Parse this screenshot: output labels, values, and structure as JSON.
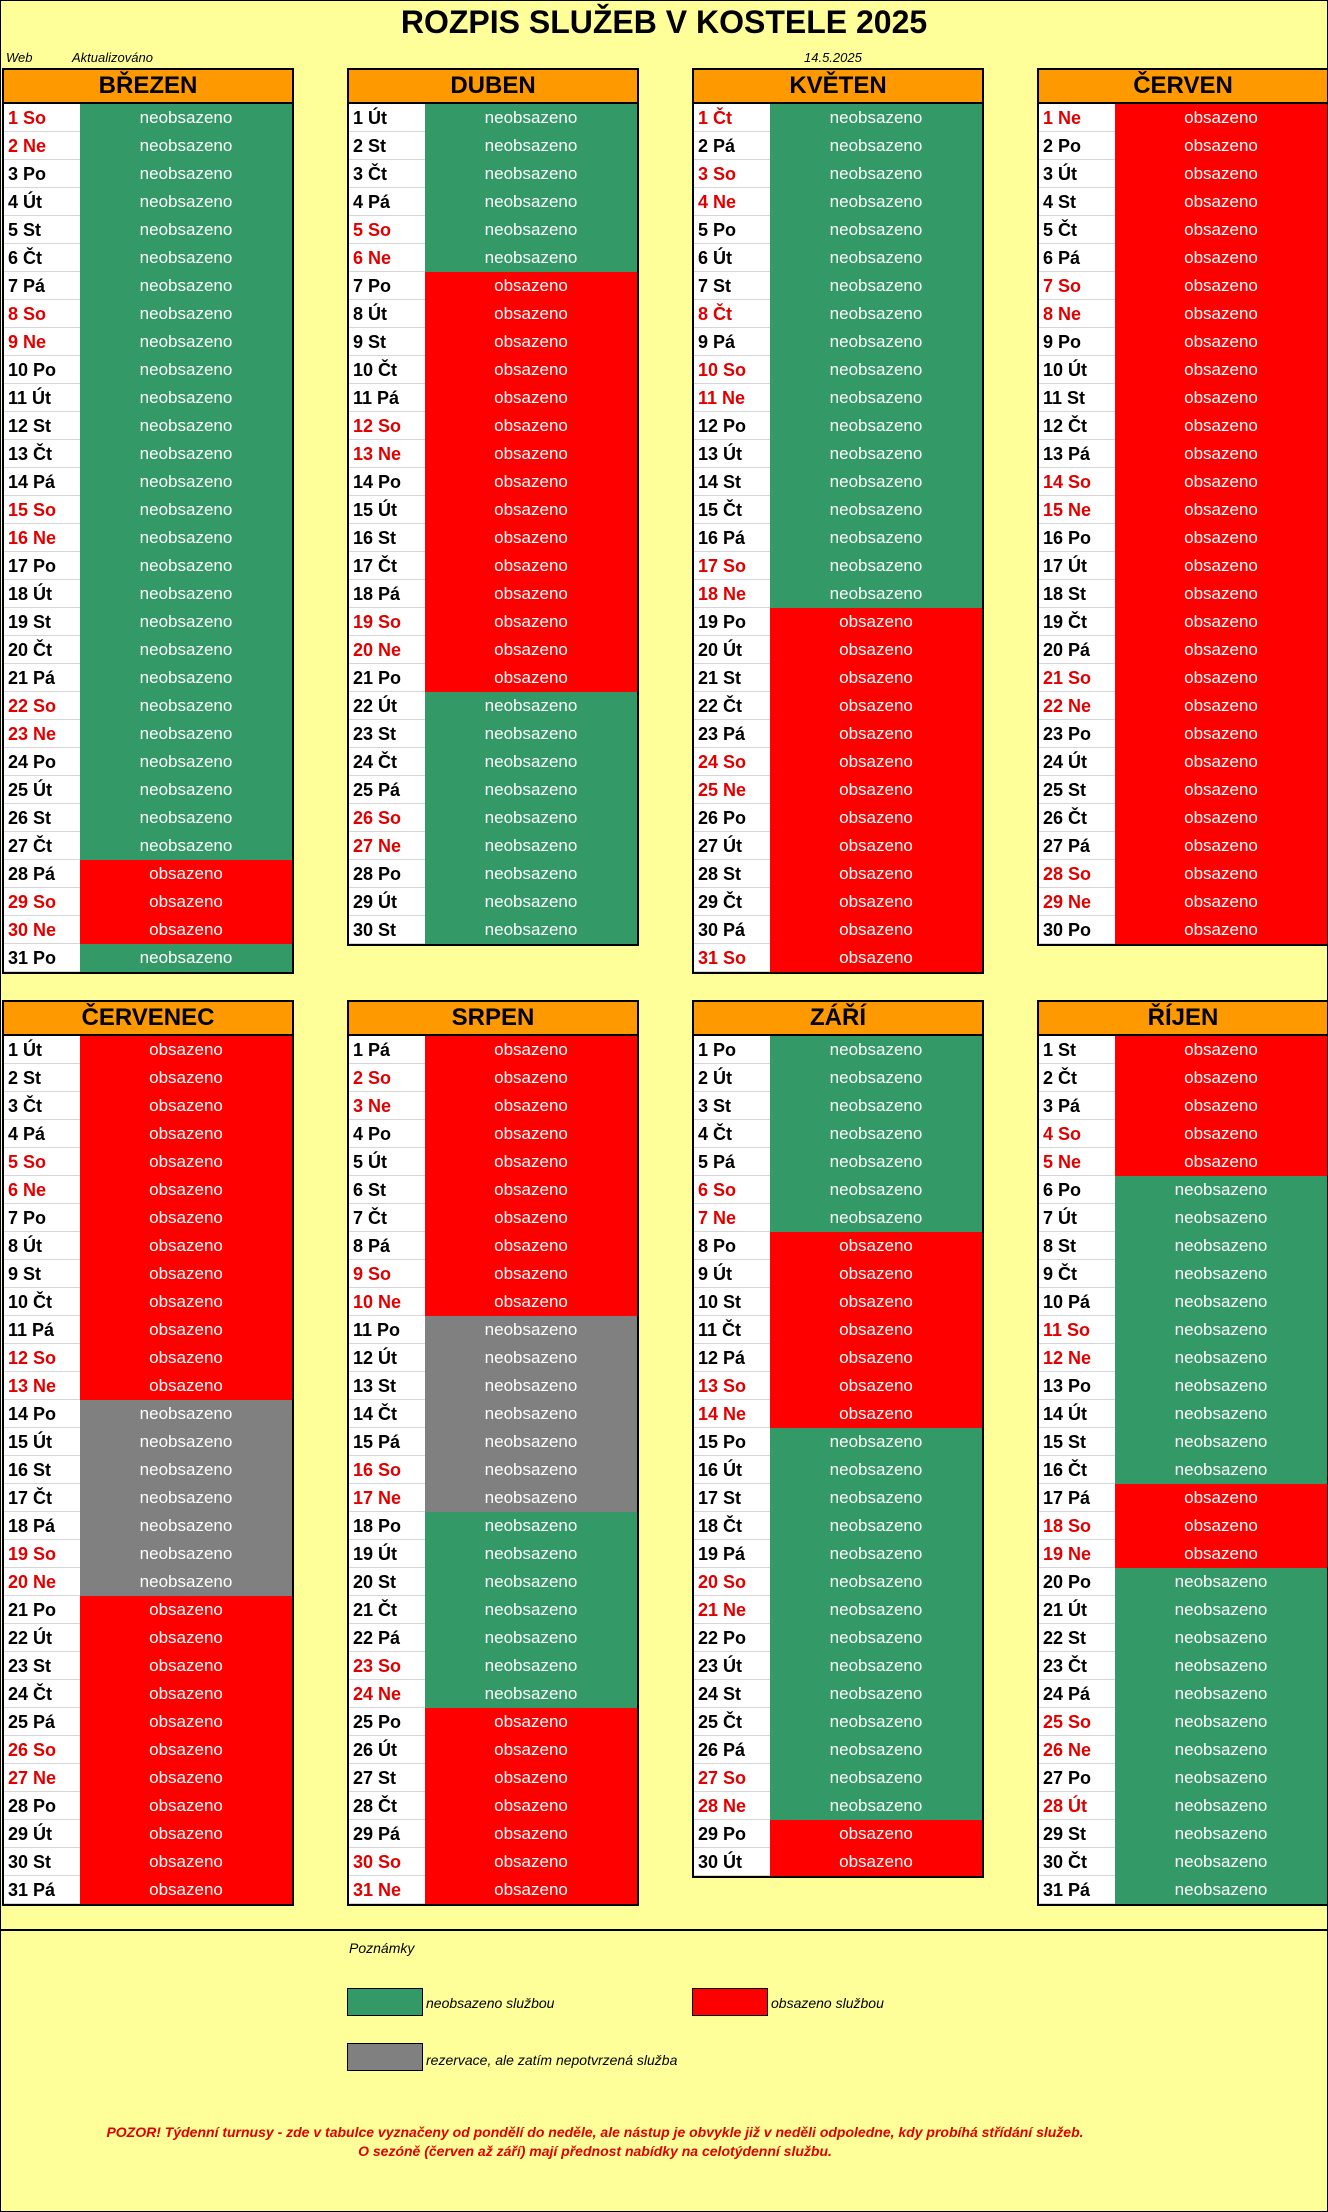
{
  "title": "ROZPIS SLUŽEB V KOSTELE 2025",
  "header": {
    "web_label": "Web",
    "updated_label": "Aktualizováno",
    "updated_date": "14.5.2025"
  },
  "status_labels": {
    "free": "neobsazeno",
    "busy": "obsazeno",
    "res": "neobsazeno"
  },
  "colors": {
    "free": "#339966",
    "busy": "#ff0000",
    "res": "#808080",
    "header": "#ff9900",
    "background": "#ffff99",
    "weekend_text": "#e00000"
  },
  "months": [
    {
      "name": "BŘEZEN",
      "days": [
        "1 So",
        "2 Ne",
        "3 Po",
        "4 Út",
        "5 St",
        "6 Čt",
        "7 Pá",
        "8 So",
        "9 Ne",
        "10 Po",
        "11 Út",
        "12 St",
        "13 Čt",
        "14 Pá",
        "15 So",
        "16 Ne",
        "17 Po",
        "18 Út",
        "19 St",
        "20 Čt",
        "21 Pá",
        "22 So",
        "23 Ne",
        "24 Po",
        "25 Út",
        "26 St",
        "27 Čt",
        "28 Pá",
        "29 So",
        "30 Ne",
        "31 Po"
      ],
      "status": [
        "free",
        "free",
        "free",
        "free",
        "free",
        "free",
        "free",
        "free",
        "free",
        "free",
        "free",
        "free",
        "free",
        "free",
        "free",
        "free",
        "free",
        "free",
        "free",
        "free",
        "free",
        "free",
        "free",
        "free",
        "free",
        "free",
        "free",
        "busy",
        "busy",
        "busy",
        "free"
      ]
    },
    {
      "name": "DUBEN",
      "days": [
        "1 Út",
        "2 St",
        "3 Čt",
        "4 Pá",
        "5 So",
        "6 Ne",
        "7 Po",
        "8 Út",
        "9 St",
        "10 Čt",
        "11 Pá",
        "12 So",
        "13 Ne",
        "14 Po",
        "15 Út",
        "16 St",
        "17 Čt",
        "18 Pá",
        "19 So",
        "20 Ne",
        "21 Po",
        "22 Út",
        "23 St",
        "24 Čt",
        "25 Pá",
        "26 So",
        "27 Ne",
        "28 Po",
        "29 Út",
        "30 St"
      ],
      "status": [
        "free",
        "free",
        "free",
        "free",
        "free",
        "free",
        "busy",
        "busy",
        "busy",
        "busy",
        "busy",
        "busy",
        "busy",
        "busy",
        "busy",
        "busy",
        "busy",
        "busy",
        "busy",
        "busy",
        "busy",
        "free",
        "free",
        "free",
        "free",
        "free",
        "free",
        "free",
        "free",
        "free"
      ]
    },
    {
      "name": "KVĚTEN",
      "days": [
        "1 Čt",
        "2 Pá",
        "3 So",
        "4 Ne",
        "5 Po",
        "6 Út",
        "7 St",
        "8 Čt",
        "9 Pá",
        "10 So",
        "11 Ne",
        "12 Po",
        "13 Út",
        "14 St",
        "15 Čt",
        "16 Pá",
        "17 So",
        "18 Ne",
        "19 Po",
        "20 Út",
        "21 St",
        "22 Čt",
        "23 Pá",
        "24 So",
        "25 Ne",
        "26 Po",
        "27 Út",
        "28 St",
        "29 Čt",
        "30 Pá",
        "31 So"
      ],
      "weekend_extra": [
        "1 Čt",
        "8 Čt"
      ],
      "status": [
        "free",
        "free",
        "free",
        "free",
        "free",
        "free",
        "free",
        "free",
        "free",
        "free",
        "free",
        "free",
        "free",
        "free",
        "free",
        "free",
        "free",
        "free",
        "busy",
        "busy",
        "busy",
        "busy",
        "busy",
        "busy",
        "busy",
        "busy",
        "busy",
        "busy",
        "busy",
        "busy",
        "busy"
      ]
    },
    {
      "name": "ČERVEN",
      "days": [
        "1 Ne",
        "2 Po",
        "3 Út",
        "4 St",
        "5 Čt",
        "6 Pá",
        "7 So",
        "8 Ne",
        "9 Po",
        "10 Út",
        "11 St",
        "12 Čt",
        "13 Pá",
        "14 So",
        "15 Ne",
        "16 Po",
        "17 Út",
        "18 St",
        "19 Čt",
        "20 Pá",
        "21 So",
        "22 Ne",
        "23 Po",
        "24 Út",
        "25 St",
        "26 Čt",
        "27 Pá",
        "28 So",
        "29 Ne",
        "30 Po"
      ],
      "status": [
        "busy",
        "busy",
        "busy",
        "busy",
        "busy",
        "busy",
        "busy",
        "busy",
        "busy",
        "busy",
        "busy",
        "busy",
        "busy",
        "busy",
        "busy",
        "busy",
        "busy",
        "busy",
        "busy",
        "busy",
        "busy",
        "busy",
        "busy",
        "busy",
        "busy",
        "busy",
        "busy",
        "busy",
        "busy",
        "busy"
      ]
    },
    {
      "name": "ČERVENEC",
      "days": [
        "1 Út",
        "2 St",
        "3 Čt",
        "4 Pá",
        "5 So",
        "6 Ne",
        "7 Po",
        "8 Út",
        "9 St",
        "10 Čt",
        "11 Pá",
        "12 So",
        "13 Ne",
        "14 Po",
        "15 Út",
        "16 St",
        "17 Čt",
        "18 Pá",
        "19 So",
        "20 Ne",
        "21 Po",
        "22 Út",
        "23 St",
        "24 Čt",
        "25 Pá",
        "26 So",
        "27 Ne",
        "28 Po",
        "29 Út",
        "30 St",
        "31 Pá"
      ],
      "status": [
        "busy",
        "busy",
        "busy",
        "busy",
        "busy",
        "busy",
        "busy",
        "busy",
        "busy",
        "busy",
        "busy",
        "busy",
        "busy",
        "res",
        "res",
        "res",
        "res",
        "res",
        "res",
        "res",
        "busy",
        "busy",
        "busy",
        "busy",
        "busy",
        "busy",
        "busy",
        "busy",
        "busy",
        "busy",
        "busy"
      ]
    },
    {
      "name": "SRPEN",
      "days": [
        "1 Pá",
        "2 So",
        "3 Ne",
        "4 Po",
        "5 Út",
        "6 St",
        "7 Čt",
        "8 Pá",
        "9 So",
        "10 Ne",
        "11 Po",
        "12 Út",
        "13 St",
        "14 Čt",
        "15 Pá",
        "16 So",
        "17 Ne",
        "18 Po",
        "19 Út",
        "20 St",
        "21 Čt",
        "22 Pá",
        "23 So",
        "24 Ne",
        "25 Po",
        "26 Út",
        "27 St",
        "28 Čt",
        "29 Pá",
        "30 So",
        "31 Ne"
      ],
      "status": [
        "busy",
        "busy",
        "busy",
        "busy",
        "busy",
        "busy",
        "busy",
        "busy",
        "busy",
        "busy",
        "res",
        "res",
        "res",
        "res",
        "res",
        "res",
        "res",
        "free",
        "free",
        "free",
        "free",
        "free",
        "free",
        "free",
        "busy",
        "busy",
        "busy",
        "busy",
        "busy",
        "busy",
        "busy"
      ]
    },
    {
      "name": "ZÁŘÍ",
      "days": [
        "1 Po",
        "2 Út",
        "3 St",
        "4 Čt",
        "5 Pá",
        "6 So",
        "7 Ne",
        "8 Po",
        "9 Út",
        "10 St",
        "11 Čt",
        "12 Pá",
        "13 So",
        "14 Ne",
        "15 Po",
        "16 Út",
        "17 St",
        "18 Čt",
        "19 Pá",
        "20 So",
        "21 Ne",
        "22 Po",
        "23 Út",
        "24 St",
        "25 Čt",
        "26 Pá",
        "27 So",
        "28 Ne",
        "29 Po",
        "30 Út"
      ],
      "status": [
        "free",
        "free",
        "free",
        "free",
        "free",
        "free",
        "free",
        "busy",
        "busy",
        "busy",
        "busy",
        "busy",
        "busy",
        "busy",
        "free",
        "free",
        "free",
        "free",
        "free",
        "free",
        "free",
        "free",
        "free",
        "free",
        "free",
        "free",
        "free",
        "free",
        "busy",
        "busy"
      ]
    },
    {
      "name": "ŘÍJEN",
      "days": [
        "1 St",
        "2 Čt",
        "3 Pá",
        "4 So",
        "5 Ne",
        "6 Po",
        "7 Út",
        "8 St",
        "9 Čt",
        "10 Pá",
        "11 So",
        "12 Ne",
        "13 Po",
        "14 Út",
        "15 St",
        "16 Čt",
        "17 Pá",
        "18 So",
        "19 Ne",
        "20 Po",
        "21 Út",
        "22 St",
        "23 Čt",
        "24 Pá",
        "25 So",
        "26 Ne",
        "27 Po",
        "28 Út",
        "29 St",
        "30 Čt",
        "31 Pá"
      ],
      "weekend_extra": [
        "28 Út"
      ],
      "status": [
        "busy",
        "busy",
        "busy",
        "busy",
        "busy",
        "free",
        "free",
        "free",
        "free",
        "free",
        "free",
        "free",
        "free",
        "free",
        "free",
        "free",
        "busy",
        "busy",
        "busy",
        "free",
        "free",
        "free",
        "free",
        "free",
        "free",
        "free",
        "free",
        "free",
        "free",
        "free",
        "free"
      ]
    }
  ],
  "notes": {
    "label": "Poznámky",
    "legend_free": "neobsazeno službou",
    "legend_busy": "obsazeno službou",
    "legend_res": "rezervace, ale zatím nepotvrzená služba",
    "warning_line1": "POZOR! Týdenní turnusy - zde v tabulce vyznačeny od pondělí do neděle, ale nástup je obvykle již v neděli odpoledne, kdy probíhá střídání služeb.",
    "warning_line2": "O sezóně (červen až září) mají přednost nabídky na celotýdenní službu."
  }
}
